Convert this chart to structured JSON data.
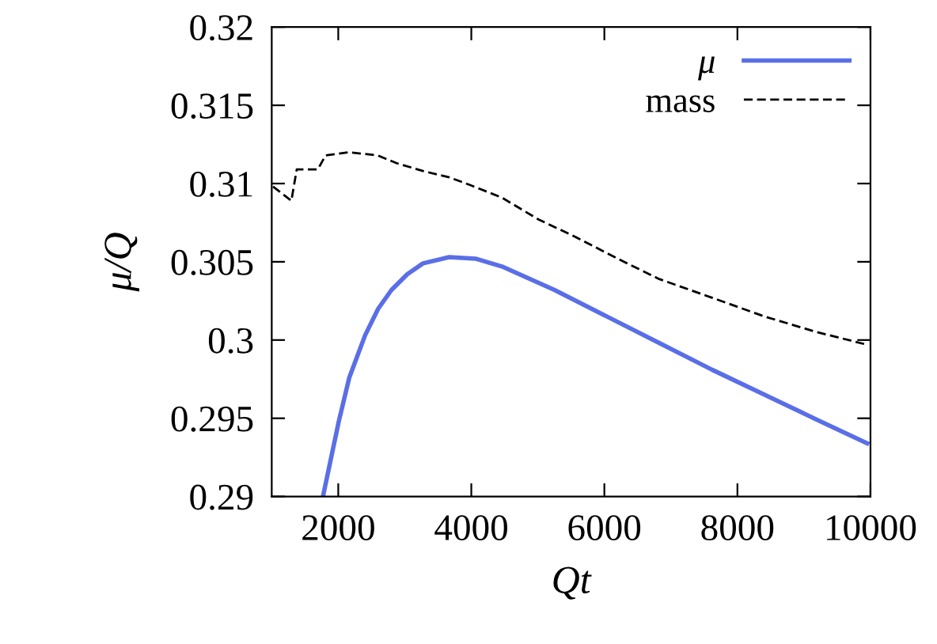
{
  "chart_data": {
    "type": "line",
    "xlabel": "Qt",
    "ylabel": "μ/Q",
    "xlim": [
      1000,
      10000
    ],
    "xticks": [
      2000,
      4000,
      6000,
      8000,
      10000
    ],
    "ylim": [
      0.29,
      0.32
    ],
    "yticks": [
      0.29,
      0.295,
      0.3,
      0.305,
      0.31,
      0.315,
      0.32
    ],
    "grid": false,
    "legend": "top right",
    "marker": "none",
    "series": [
      {
        "name": "μ",
        "color": "#5a6fe6",
        "line_style": "solid",
        "x": [
          1770,
          1889,
          2008,
          2166,
          2403,
          2600,
          2800,
          3036,
          3274,
          3668,
          4063,
          4460,
          5250,
          6040,
          6830,
          7620,
          8410,
          9200,
          9950
        ],
        "values": [
          0.29,
          0.2924,
          0.2948,
          0.2976,
          0.3003,
          0.302,
          0.3032,
          0.3042,
          0.3049,
          0.3053,
          0.3052,
          0.3047,
          0.3032,
          0.3015,
          0.2998,
          0.2981,
          0.2965,
          0.2949,
          0.2934
        ]
      },
      {
        "name": "mass",
        "color": "#000000",
        "line_style": "dashed",
        "x": [
          1020,
          1295,
          1376,
          1692,
          1810,
          2166,
          2593,
          2878,
          3274,
          3668,
          3986,
          4460,
          5012,
          5560,
          6200,
          6823,
          7620,
          8410,
          9200,
          9950
        ],
        "values": [
          0.3098,
          0.3089,
          0.3109,
          0.3109,
          0.3118,
          0.312,
          0.3118,
          0.3113,
          0.3108,
          0.3104,
          0.3099,
          0.3091,
          0.3077,
          0.3066,
          0.3052,
          0.3039,
          0.3027,
          0.3015,
          0.3005,
          0.2997
        ]
      }
    ]
  }
}
